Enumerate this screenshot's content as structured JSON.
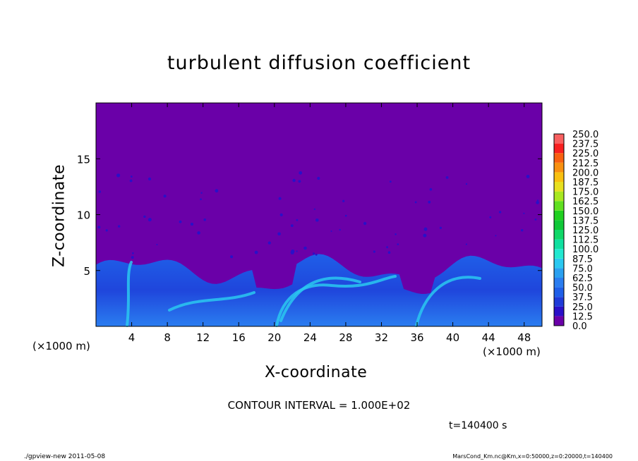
{
  "chart_data": {
    "type": "heatmap",
    "title": "turbulent diffusion coefficient",
    "xlabel": "X-coordinate",
    "ylabel": "Z-coordinate",
    "x_unit": "(×1000 m)",
    "y_unit": "(×1000 m)",
    "xlim": [
      0,
      50
    ],
    "ylim": [
      0,
      20
    ],
    "x_ticks": [
      4,
      8,
      12,
      16,
      20,
      24,
      28,
      32,
      36,
      40,
      44,
      48
    ],
    "y_ticks": [
      5,
      10,
      15
    ],
    "colorbar": {
      "levels": [
        "0.0",
        "12.5",
        "25.0",
        "37.5",
        "50.0",
        "62.5",
        "75.0",
        "87.5",
        "100.0",
        "112.5",
        "125.0",
        "137.5",
        "150.0",
        "162.5",
        "175.0",
        "187.5",
        "200.0",
        "212.5",
        "225.0",
        "237.5",
        "250.0"
      ],
      "colors": [
        "#6a00a8",
        "#2a10c8",
        "#1f3bd8",
        "#1f5fe8",
        "#2a7df0",
        "#2aa0f0",
        "#2ac8f0",
        "#22e8d0",
        "#10e0a0",
        "#10d868",
        "#10c838",
        "#20d020",
        "#60e020",
        "#a8e820",
        "#e8e020",
        "#f8c010",
        "#f89010",
        "#f86010",
        "#f82020",
        "#f86060"
      ]
    },
    "background_level": "0.0",
    "boundary_layer_top_approx": 5.5,
    "contour_interval": "CONTOUR INTERVAL = 1.000E+02",
    "time": "t=140400 s"
  },
  "footer": {
    "left": "./gpview-new   2011-05-08",
    "right": "MarsCond_Km.nc@Km,x=0:50000,z=0:20000,t=140400"
  }
}
